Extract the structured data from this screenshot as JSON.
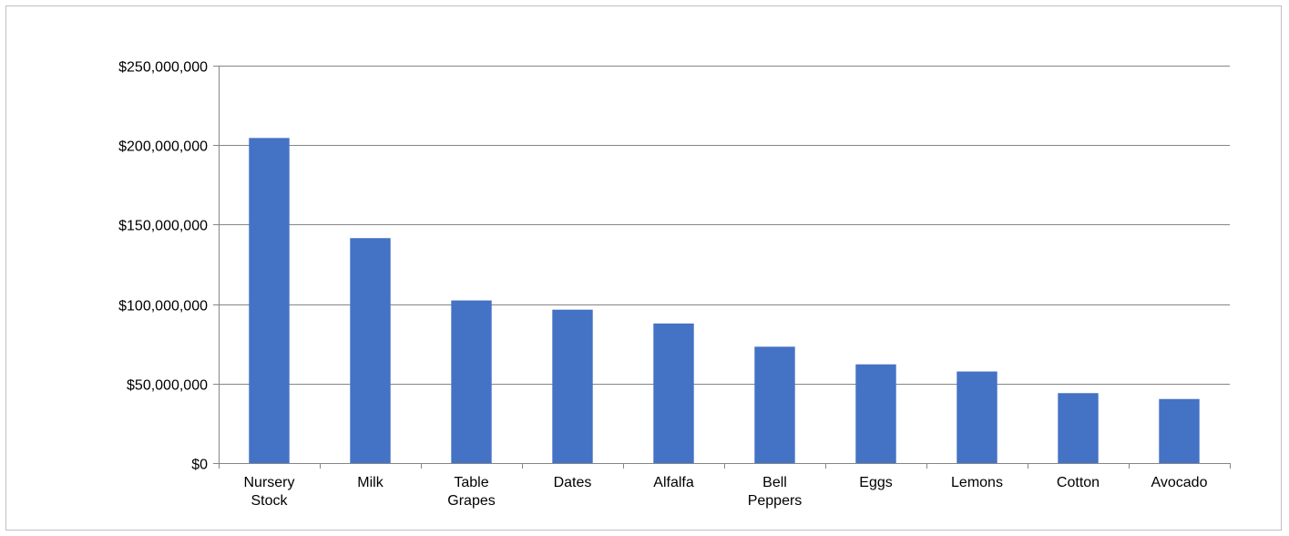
{
  "chart_data": {
    "type": "bar",
    "title": "",
    "xlabel": "",
    "ylabel": "",
    "categories": [
      [
        "Nursery",
        "Stock"
      ],
      [
        "Milk"
      ],
      [
        "Table",
        "Grapes"
      ],
      [
        "Dates"
      ],
      [
        "Alfalfa"
      ],
      [
        "Bell",
        "Peppers"
      ],
      [
        "Eggs"
      ],
      [
        "Lemons"
      ],
      [
        "Cotton"
      ],
      [
        "Avocado"
      ]
    ],
    "values": [
      204500000,
      141500000,
      102300000,
      96500000,
      87800000,
      73200000,
      62100000,
      57600000,
      44000000,
      40300000
    ],
    "ylim": [
      0,
      250000000
    ],
    "yticks": [
      0,
      50000000,
      100000000,
      150000000,
      200000000,
      250000000
    ],
    "ytick_labels": [
      "$0",
      "$50,000,000",
      "$100,000,000",
      "$150,000,000",
      "$200,000,000",
      "$250,000,000"
    ],
    "grid": true,
    "legend": "none",
    "bar_color": "#4472c4",
    "grid_color": "#868686",
    "axis_color": "#868686"
  }
}
